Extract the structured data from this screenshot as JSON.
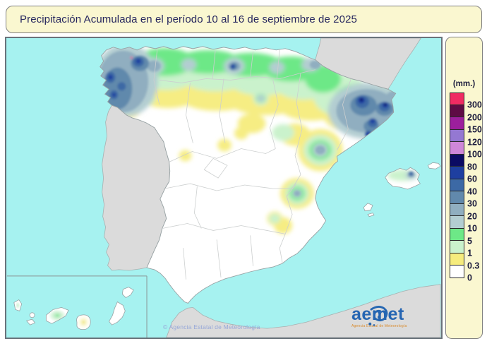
{
  "title_bar": {
    "title": "Precipitación Acumulada en el período 10 al 16 de septiembre de 2025"
  },
  "legend": {
    "unit_label": "(mm.)",
    "entries": [
      {
        "value": "300",
        "color": "#EF2B63"
      },
      {
        "value": "200",
        "color": "#5E0B44"
      },
      {
        "value": "150",
        "color": "#9C1F9C"
      },
      {
        "value": "120",
        "color": "#9478D2"
      },
      {
        "value": "100",
        "color": "#CE87D8"
      },
      {
        "value": "80",
        "color": "#0B0B63"
      },
      {
        "value": "60",
        "color": "#1E3FA0"
      },
      {
        "value": "40",
        "color": "#3C69A5"
      },
      {
        "value": "30",
        "color": "#6189AC"
      },
      {
        "value": "20",
        "color": "#90AEC0"
      },
      {
        "value": "10",
        "color": "#B3CDD1"
      },
      {
        "value": "5",
        "color": "#6DE887"
      },
      {
        "value": "1",
        "color": "#CAF2CC"
      },
      {
        "value": "0.3",
        "color": "#F6EC7D"
      },
      {
        "value": "0",
        "color": "#FFFFFF"
      }
    ]
  },
  "map": {
    "copyright": "© Agencia Estatal de Meteorología",
    "logo": {
      "brand": "aemet",
      "subtitle": "Agencia Estatal de Meteorología"
    },
    "colors": {
      "sea": "#A6F2F0",
      "outside_land": "#DBDBDB",
      "spain_fill": "#FFFFFF",
      "panel_bg": "#FAF7D0",
      "panel_border": "#808080",
      "title_text": "#26265E"
    }
  },
  "chart_data": {
    "type": "heatmap",
    "title": "Precipitación Acumulada en el período 10 al 16 de septiembre de 2025",
    "unit": "mm",
    "scale_bounds_mm": [
      0,
      0.3,
      1,
      5,
      10,
      20,
      30,
      40,
      60,
      80,
      100,
      120,
      150,
      200,
      300
    ],
    "legend_position": "right"
  }
}
